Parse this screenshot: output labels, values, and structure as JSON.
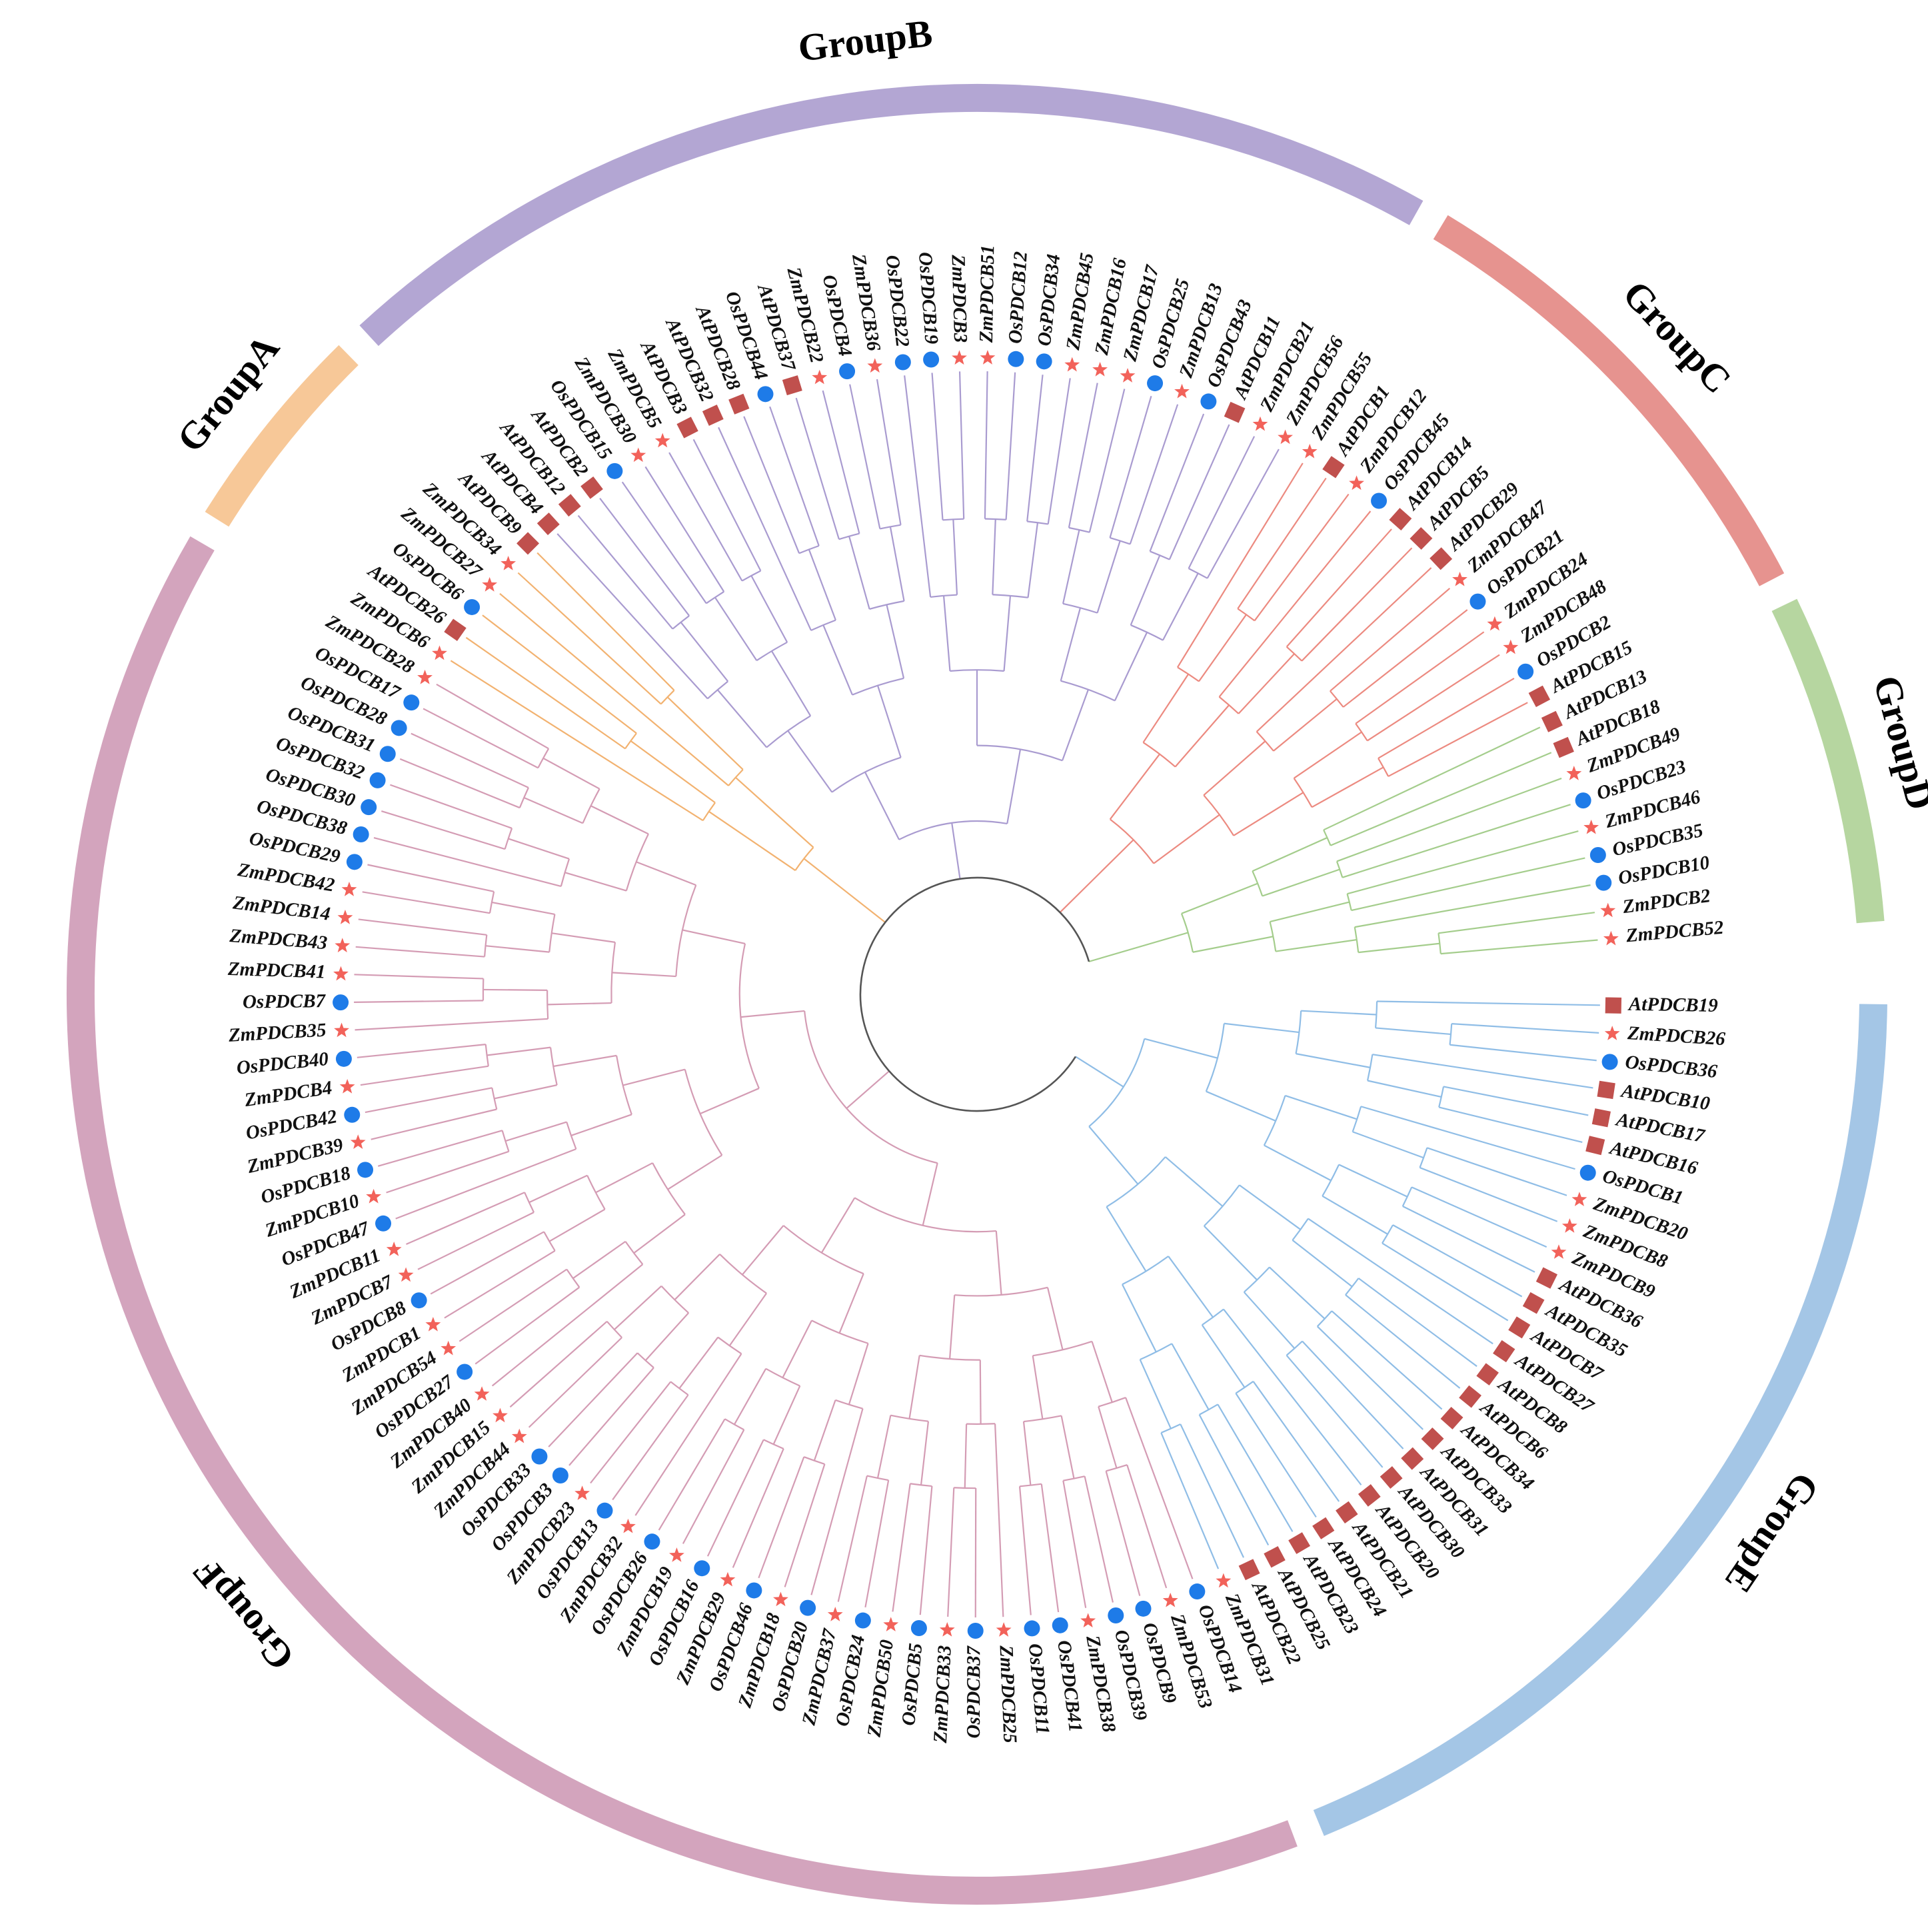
{
  "colors": {
    "background": "#ffffff",
    "trunk": "#555555",
    "at_square": "#c0504d",
    "os_circle": "#1e7be8",
    "zm_star": "#f2625a"
  },
  "legend_marker_kinds": {
    "At": "red-square-icon",
    "Os": "blue-circle-icon",
    "Zm": "red-star-icon"
  },
  "groups": [
    {
      "name": "GroupA",
      "color": "#f7c898",
      "branch_color": "#f2b270"
    },
    {
      "name": "GroupB",
      "color": "#b3a6d3",
      "branch_color": "#a99bd0"
    },
    {
      "name": "GroupC",
      "color": "#e6938f",
      "branch_color": "#ec8a80"
    },
    {
      "name": "GroupD",
      "color": "#b6d6a0",
      "branch_color": "#a4cd8c"
    },
    {
      "name": "GroupE",
      "color": "#a4c6e6",
      "branch_color": "#8fbde6"
    },
    {
      "name": "GroupF",
      "color": "#d3a4bd",
      "branch_color": "#d49cb4"
    }
  ],
  "leaves": [
    {
      "label": "AtPDCB19",
      "group": "GroupE"
    },
    {
      "label": "ZmPDCB26",
      "group": "GroupE"
    },
    {
      "label": "OsPDCB36",
      "group": "GroupE"
    },
    {
      "label": "AtPDCB10",
      "group": "GroupE"
    },
    {
      "label": "AtPDCB17",
      "group": "GroupE"
    },
    {
      "label": "AtPDCB16",
      "group": "GroupE"
    },
    {
      "label": "OsPDCB1",
      "group": "GroupE"
    },
    {
      "label": "ZmPDCB20",
      "group": "GroupE"
    },
    {
      "label": "ZmPDCB8",
      "group": "GroupE"
    },
    {
      "label": "ZmPDCB9",
      "group": "GroupE"
    },
    {
      "label": "AtPDCB36",
      "group": "GroupE"
    },
    {
      "label": "AtPDCB35",
      "group": "GroupE"
    },
    {
      "label": "AtPDCB7",
      "group": "GroupE"
    },
    {
      "label": "AtPDCB27",
      "group": "GroupE"
    },
    {
      "label": "AtPDCB8",
      "group": "GroupE"
    },
    {
      "label": "AtPDCB6",
      "group": "GroupE"
    },
    {
      "label": "AtPDCB34",
      "group": "GroupE"
    },
    {
      "label": "AtPDCB33",
      "group": "GroupE"
    },
    {
      "label": "AtPDCB31",
      "group": "GroupE"
    },
    {
      "label": "AtPDCB30",
      "group": "GroupE"
    },
    {
      "label": "AtPDCB20",
      "group": "GroupE"
    },
    {
      "label": "AtPDCB21",
      "group": "GroupE"
    },
    {
      "label": "AtPDCB24",
      "group": "GroupE"
    },
    {
      "label": "AtPDCB23",
      "group": "GroupE"
    },
    {
      "label": "AtPDCB25",
      "group": "GroupE"
    },
    {
      "label": "AtPDCB22",
      "group": "GroupE"
    },
    {
      "label": "ZmPDCB31",
      "group": "GroupE"
    },
    {
      "label": "OsPDCB14",
      "group": "GroupF"
    },
    {
      "label": "ZmPDCB53",
      "group": "GroupF"
    },
    {
      "label": "OsPDCB9",
      "group": "GroupF"
    },
    {
      "label": "OsPDCB39",
      "group": "GroupF"
    },
    {
      "label": "ZmPDCB38",
      "group": "GroupF"
    },
    {
      "label": "OsPDCB41",
      "group": "GroupF"
    },
    {
      "label": "OsPDCB11",
      "group": "GroupF"
    },
    {
      "label": "ZmPDCB25",
      "group": "GroupF"
    },
    {
      "label": "OsPDCB37",
      "group": "GroupF"
    },
    {
      "label": "ZmPDCB33",
      "group": "GroupF"
    },
    {
      "label": "OsPDCB5",
      "group": "GroupF"
    },
    {
      "label": "ZmPDCB50",
      "group": "GroupF"
    },
    {
      "label": "OsPDCB24",
      "group": "GroupF"
    },
    {
      "label": "ZmPDCB37",
      "group": "GroupF"
    },
    {
      "label": "OsPDCB20",
      "group": "GroupF"
    },
    {
      "label": "ZmPDCB18",
      "group": "GroupF"
    },
    {
      "label": "OsPDCB46",
      "group": "GroupF"
    },
    {
      "label": "ZmPDCB29",
      "group": "GroupF"
    },
    {
      "label": "OsPDCB16",
      "group": "GroupF"
    },
    {
      "label": "ZmPDCB19",
      "group": "GroupF"
    },
    {
      "label": "OsPDCB26",
      "group": "GroupF"
    },
    {
      "label": "ZmPDCB32",
      "group": "GroupF"
    },
    {
      "label": "OsPDCB13",
      "group": "GroupF"
    },
    {
      "label": "ZmPDCB23",
      "group": "GroupF"
    },
    {
      "label": "OsPDCB3",
      "group": "GroupF"
    },
    {
      "label": "OsPDCB33",
      "group": "GroupF"
    },
    {
      "label": "ZmPDCB44",
      "group": "GroupF"
    },
    {
      "label": "ZmPDCB15",
      "group": "GroupF"
    },
    {
      "label": "ZmPDCB40",
      "group": "GroupF"
    },
    {
      "label": "OsPDCB27",
      "group": "GroupF"
    },
    {
      "label": "ZmPDCB54",
      "group": "GroupF"
    },
    {
      "label": "ZmPDCB1",
      "group": "GroupF"
    },
    {
      "label": "OsPDCB8",
      "group": "GroupF"
    },
    {
      "label": "ZmPDCB7",
      "group": "GroupF"
    },
    {
      "label": "ZmPDCB11",
      "group": "GroupF"
    },
    {
      "label": "OsPDCB47",
      "group": "GroupF"
    },
    {
      "label": "ZmPDCB10",
      "group": "GroupF"
    },
    {
      "label": "OsPDCB18",
      "group": "GroupF"
    },
    {
      "label": "ZmPDCB39",
      "group": "GroupF"
    },
    {
      "label": "OsPDCB42",
      "group": "GroupF"
    },
    {
      "label": "ZmPDCB4",
      "group": "GroupF"
    },
    {
      "label": "OsPDCB40",
      "group": "GroupF"
    },
    {
      "label": "ZmPDCB35",
      "group": "GroupF"
    },
    {
      "label": "OsPDCB7",
      "group": "GroupF"
    },
    {
      "label": "ZmPDCB41",
      "group": "GroupF"
    },
    {
      "label": "ZmPDCB43",
      "group": "GroupF"
    },
    {
      "label": "ZmPDCB14",
      "group": "GroupF"
    },
    {
      "label": "ZmPDCB42",
      "group": "GroupF"
    },
    {
      "label": "OsPDCB29",
      "group": "GroupF"
    },
    {
      "label": "OsPDCB38",
      "group": "GroupF"
    },
    {
      "label": "OsPDCB30",
      "group": "GroupF"
    },
    {
      "label": "OsPDCB32",
      "group": "GroupF"
    },
    {
      "label": "OsPDCB31",
      "group": "GroupF"
    },
    {
      "label": "OsPDCB28",
      "group": "GroupF"
    },
    {
      "label": "OsPDCB17",
      "group": "GroupF"
    },
    {
      "label": "ZmPDCB28",
      "group": "GroupF"
    },
    {
      "label": "ZmPDCB6",
      "group": "GroupA"
    },
    {
      "label": "AtPDCB26",
      "group": "GroupA"
    },
    {
      "label": "OsPDCB6",
      "group": "GroupA"
    },
    {
      "label": "ZmPDCB27",
      "group": "GroupA"
    },
    {
      "label": "ZmPDCB34",
      "group": "GroupA"
    },
    {
      "label": "AtPDCB9",
      "group": "GroupA"
    },
    {
      "label": "AtPDCB4",
      "group": "GroupB"
    },
    {
      "label": "AtPDCB12",
      "group": "GroupB"
    },
    {
      "label": "AtPDCB2",
      "group": "GroupB"
    },
    {
      "label": "OsPDCB15",
      "group": "GroupB"
    },
    {
      "label": "ZmPDCB30",
      "group": "GroupB"
    },
    {
      "label": "ZmPDCB5",
      "group": "GroupB"
    },
    {
      "label": "AtPDCB3",
      "group": "GroupB"
    },
    {
      "label": "AtPDCB32",
      "group": "GroupB"
    },
    {
      "label": "AtPDCB28",
      "group": "GroupB"
    },
    {
      "label": "OsPDCB44",
      "group": "GroupB"
    },
    {
      "label": "AtPDCB37",
      "group": "GroupB"
    },
    {
      "label": "ZmPDCB22",
      "group": "GroupB"
    },
    {
      "label": "OsPDCB4",
      "group": "GroupB"
    },
    {
      "label": "ZmPDCB36",
      "group": "GroupB"
    },
    {
      "label": "OsPDCB22",
      "group": "GroupB"
    },
    {
      "label": "OsPDCB19",
      "group": "GroupB"
    },
    {
      "label": "ZmPDCB3",
      "group": "GroupB"
    },
    {
      "label": "ZmPDCB51",
      "group": "GroupB"
    },
    {
      "label": "OsPDCB12",
      "group": "GroupB"
    },
    {
      "label": "OsPDCB34",
      "group": "GroupB"
    },
    {
      "label": "ZmPDCB45",
      "group": "GroupB"
    },
    {
      "label": "ZmPDCB16",
      "group": "GroupB"
    },
    {
      "label": "ZmPDCB17",
      "group": "GroupB"
    },
    {
      "label": "OsPDCB25",
      "group": "GroupB"
    },
    {
      "label": "ZmPDCB13",
      "group": "GroupB"
    },
    {
      "label": "OsPDCB43",
      "group": "GroupB"
    },
    {
      "label": "AtPDCB11",
      "group": "GroupB"
    },
    {
      "label": "ZmPDCB21",
      "group": "GroupB"
    },
    {
      "label": "ZmPDCB56",
      "group": "GroupB"
    },
    {
      "label": "ZmPDCB55",
      "group": "GroupC"
    },
    {
      "label": "AtPDCB1",
      "group": "GroupC"
    },
    {
      "label": "ZmPDCB12",
      "group": "GroupC"
    },
    {
      "label": "OsPDCB45",
      "group": "GroupC"
    },
    {
      "label": "AtPDCB14",
      "group": "GroupC"
    },
    {
      "label": "AtPDCB5",
      "group": "GroupC"
    },
    {
      "label": "AtPDCB29",
      "group": "GroupC"
    },
    {
      "label": "ZmPDCB47",
      "group": "GroupC"
    },
    {
      "label": "OsPDCB21",
      "group": "GroupC"
    },
    {
      "label": "ZmPDCB24",
      "group": "GroupC"
    },
    {
      "label": "ZmPDCB48",
      "group": "GroupC"
    },
    {
      "label": "OsPDCB2",
      "group": "GroupC"
    },
    {
      "label": "AtPDCB15",
      "group": "GroupC"
    },
    {
      "label": "AtPDCB13",
      "group": "GroupD"
    },
    {
      "label": "AtPDCB18",
      "group": "GroupD"
    },
    {
      "label": "ZmPDCB49",
      "group": "GroupD"
    },
    {
      "label": "OsPDCB23",
      "group": "GroupD"
    },
    {
      "label": "ZmPDCB46",
      "group": "GroupD"
    },
    {
      "label": "OsPDCB35",
      "group": "GroupD"
    },
    {
      "label": "OsPDCB10",
      "group": "GroupD"
    },
    {
      "label": "ZmPDCB2",
      "group": "GroupD"
    },
    {
      "label": "ZmPDCB52",
      "group": "GroupD"
    }
  ]
}
